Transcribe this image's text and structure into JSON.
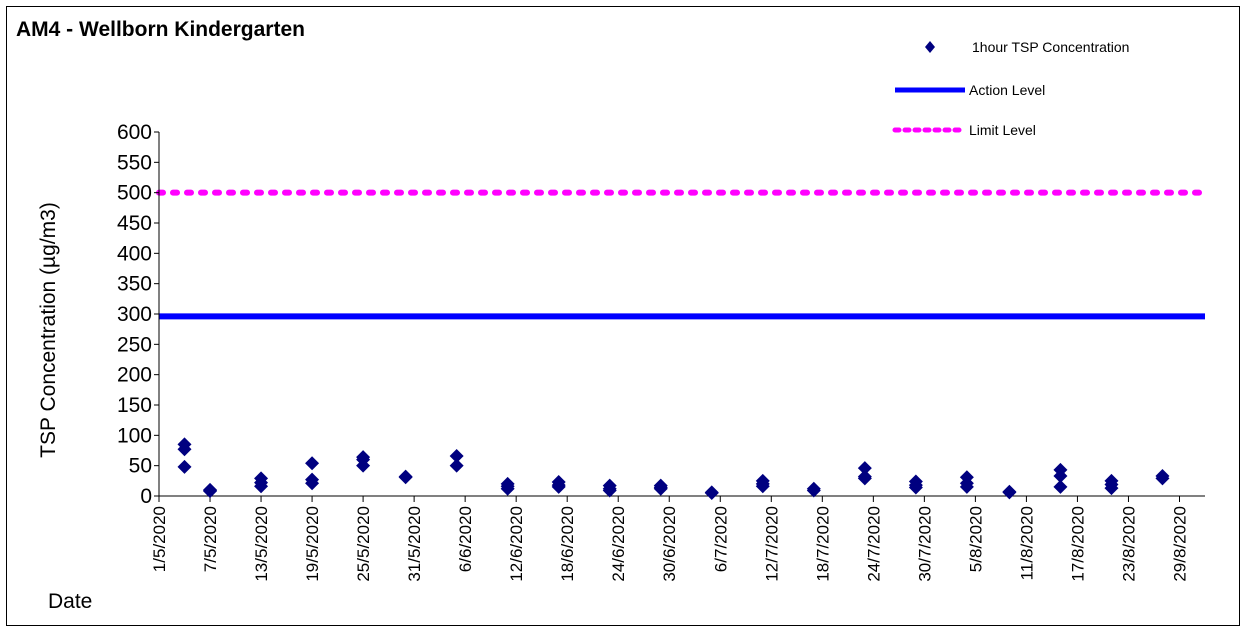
{
  "chart_data": {
    "type": "scatter",
    "title": "AM4 - Wellborn Kindergarten",
    "ylabel": "TSP Concentration (µg/m3)",
    "xlabel": "Date",
    "ylim": [
      0,
      600
    ],
    "yticks": [
      0,
      50,
      100,
      150,
      200,
      250,
      300,
      350,
      400,
      450,
      500,
      550,
      600
    ],
    "xlim": [
      "2020-05-01",
      "2020-09-01"
    ],
    "xtick_labels": [
      "1/5/2020",
      "7/5/2020",
      "13/5/2020",
      "19/5/2020",
      "25/5/2020",
      "31/5/2020",
      "6/6/2020",
      "12/6/2020",
      "18/6/2020",
      "24/6/2020",
      "30/6/2020",
      "6/7/2020",
      "12/7/2020",
      "18/7/2020",
      "24/7/2020",
      "30/7/2020",
      "5/8/2020",
      "11/8/2020",
      "17/8/2020",
      "23/8/2020",
      "29/8/2020"
    ],
    "xtick_dates": [
      "2020-05-01",
      "2020-05-07",
      "2020-05-13",
      "2020-05-19",
      "2020-05-25",
      "2020-05-31",
      "2020-06-06",
      "2020-06-12",
      "2020-06-18",
      "2020-06-24",
      "2020-06-30",
      "2020-07-06",
      "2020-07-12",
      "2020-07-18",
      "2020-07-24",
      "2020-07-30",
      "2020-08-05",
      "2020-08-11",
      "2020-08-17",
      "2020-08-23",
      "2020-08-29"
    ],
    "grid": false,
    "legend_position": "top-right",
    "series": [
      {
        "name": "1hour TSP Concentration",
        "kind": "scatter",
        "color": "#000080",
        "marker": "diamond",
        "points": [
          [
            "2020-05-04",
            85
          ],
          [
            "2020-05-04",
            77
          ],
          [
            "2020-05-04",
            48
          ],
          [
            "2020-05-07",
            9
          ],
          [
            "2020-05-07",
            8
          ],
          [
            "2020-05-07",
            10
          ],
          [
            "2020-05-13",
            29
          ],
          [
            "2020-05-13",
            22
          ],
          [
            "2020-05-13",
            16
          ],
          [
            "2020-05-19",
            54
          ],
          [
            "2020-05-19",
            27
          ],
          [
            "2020-05-19",
            21
          ],
          [
            "2020-05-25",
            64
          ],
          [
            "2020-05-25",
            60
          ],
          [
            "2020-05-25",
            50
          ],
          [
            "2020-05-30",
            32
          ],
          [
            "2020-05-30",
            31
          ],
          [
            "2020-06-05",
            66
          ],
          [
            "2020-06-05",
            50
          ],
          [
            "2020-06-11",
            20
          ],
          [
            "2020-06-11",
            16
          ],
          [
            "2020-06-11",
            12
          ],
          [
            "2020-06-17",
            23
          ],
          [
            "2020-06-17",
            18
          ],
          [
            "2020-06-17",
            15
          ],
          [
            "2020-06-23",
            17
          ],
          [
            "2020-06-23",
            12
          ],
          [
            "2020-06-23",
            9
          ],
          [
            "2020-06-29",
            17
          ],
          [
            "2020-06-29",
            14
          ],
          [
            "2020-06-29",
            12
          ],
          [
            "2020-07-05",
            6
          ],
          [
            "2020-07-05",
            5
          ],
          [
            "2020-07-11",
            25
          ],
          [
            "2020-07-11",
            20
          ],
          [
            "2020-07-11",
            16
          ],
          [
            "2020-07-17",
            12
          ],
          [
            "2020-07-17",
            9
          ],
          [
            "2020-07-23",
            46
          ],
          [
            "2020-07-23",
            32
          ],
          [
            "2020-07-23",
            29
          ],
          [
            "2020-07-29",
            24
          ],
          [
            "2020-07-29",
            18
          ],
          [
            "2020-07-29",
            14
          ],
          [
            "2020-08-04",
            31
          ],
          [
            "2020-08-04",
            21
          ],
          [
            "2020-08-04",
            15
          ],
          [
            "2020-08-09",
            7
          ],
          [
            "2020-08-09",
            6
          ],
          [
            "2020-08-15",
            43
          ],
          [
            "2020-08-15",
            33
          ],
          [
            "2020-08-15",
            15
          ],
          [
            "2020-08-21",
            25
          ],
          [
            "2020-08-21",
            19
          ],
          [
            "2020-08-21",
            13
          ],
          [
            "2020-08-27",
            33
          ],
          [
            "2020-08-27",
            29
          ]
        ]
      },
      {
        "name": "Action Level",
        "kind": "hline",
        "value": 296,
        "color": "#0000ff",
        "style": "solid"
      },
      {
        "name": "Limit Level",
        "kind": "hline",
        "value": 500,
        "color": "#ff00ff",
        "style": "dotted"
      }
    ]
  }
}
